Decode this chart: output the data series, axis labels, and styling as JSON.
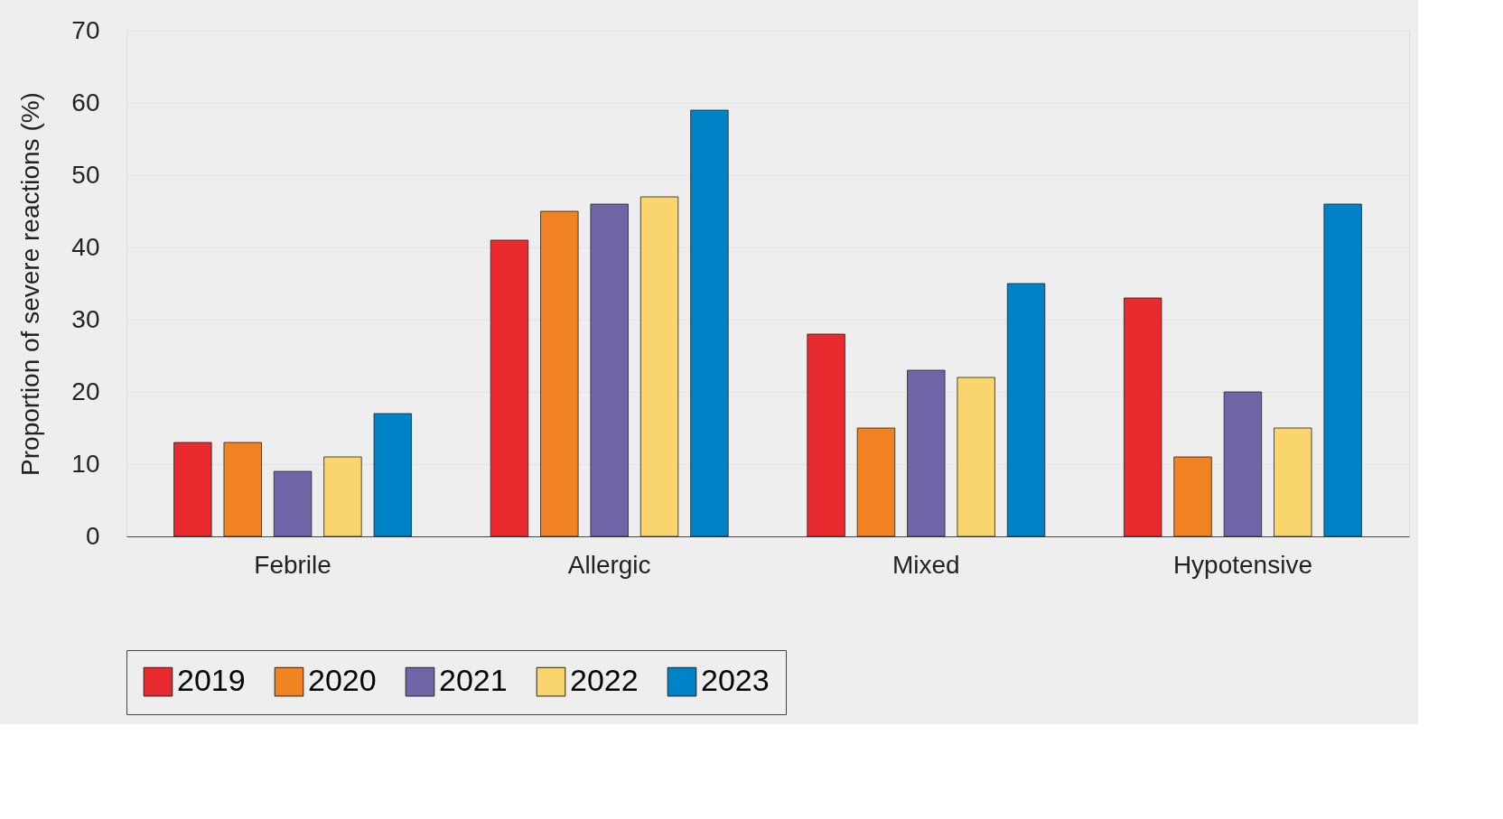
{
  "chart_data": {
    "type": "bar",
    "ylabel": "Proportion of severe reactions (%)",
    "categories": [
      "Febrile",
      "Allergic",
      "Mixed",
      "Hypotensive"
    ],
    "series": [
      {
        "name": "2019",
        "color": "#e8292e",
        "values": [
          13,
          41,
          28,
          33
        ]
      },
      {
        "name": "2020",
        "color": "#f28322",
        "values": [
          13,
          45,
          15,
          11
        ]
      },
      {
        "name": "2021",
        "color": "#7165a8",
        "values": [
          9,
          46,
          23,
          20
        ]
      },
      {
        "name": "2022",
        "color": "#fad46c",
        "values": [
          11,
          47,
          22,
          15
        ]
      },
      {
        "name": "2023",
        "color": "#0083c6",
        "values": [
          17,
          59,
          35,
          46
        ]
      }
    ],
    "ylim": [
      0,
      70
    ],
    "yticks": [
      0,
      10,
      20,
      30,
      40,
      50,
      60,
      70
    ],
    "grid": "y",
    "legend": "bottom"
  }
}
